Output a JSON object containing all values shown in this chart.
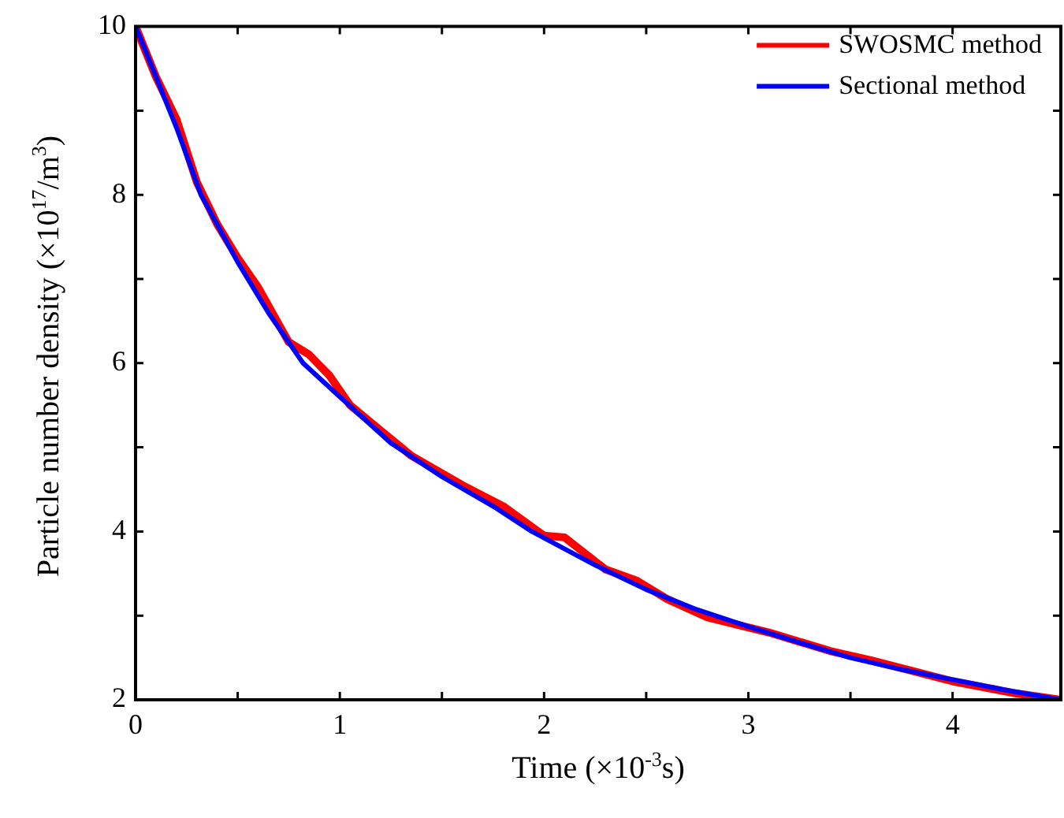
{
  "chart_data": {
    "type": "line",
    "xlabel": "Time (×10$^{-3}$s)",
    "ylabel": "Particle number density (×10$^{17}$/m$^{3}$)",
    "xlim": [
      0,
      4.53
    ],
    "xticks": [
      0,
      {
        "value": 0.5,
        "label": null
      },
      1,
      {
        "value": 1.5,
        "label": null
      },
      2,
      {
        "value": 2.5,
        "label": null
      },
      3,
      {
        "value": 3.5,
        "label": null
      },
      4
    ],
    "ylim": [
      2,
      10
    ],
    "yticks": [
      2,
      {
        "value": 3,
        "label": null
      },
      4,
      {
        "value": 5,
        "label": null
      },
      6,
      {
        "value": 7,
        "label": null
      },
      8,
      {
        "value": 9,
        "label": null
      },
      10
    ],
    "legend": "top right",
    "marker": "none",
    "line_style": "solid",
    "series": [
      {
        "name": "SWOSMC method",
        "color": "#ff0000",
        "x": [
          0,
          0.1,
          0.2,
          0.3,
          0.4,
          0.5,
          0.6,
          0.75,
          0.85,
          0.95,
          1.05,
          1.2,
          1.35,
          1.6,
          1.8,
          2.0,
          2.1,
          2.3,
          2.45,
          2.6,
          2.8,
          3.1,
          3.4,
          3.6,
          4.0,
          4.3,
          4.53
        ],
        "values": [
          10,
          9.4,
          8.9,
          8.15,
          7.65,
          7.25,
          6.9,
          6.25,
          6.1,
          5.85,
          5.5,
          5.2,
          4.9,
          4.55,
          4.3,
          3.95,
          3.93,
          3.55,
          3.42,
          3.2,
          2.98,
          2.8,
          2.58,
          2.47,
          2.22,
          2.08,
          2.0
        ]
      },
      {
        "name": "Sectional method",
        "color": "#0000ff",
        "x": [
          0,
          0.1,
          0.2,
          0.32,
          0.5,
          0.65,
          0.82,
          1,
          1.25,
          1.5,
          1.75,
          1.94,
          2.25,
          2.5,
          2.75,
          3,
          3.25,
          3.5,
          3.75,
          4,
          4.25,
          4.53
        ],
        "values": [
          10,
          9.4,
          8.8,
          8,
          7.2,
          6.6,
          6,
          5.6,
          5.05,
          4.65,
          4.3,
          4,
          3.6,
          3.31,
          3.07,
          2.87,
          2.68,
          2.5,
          2.36,
          2.24,
          2.12,
          2.0
        ]
      }
    ]
  }
}
